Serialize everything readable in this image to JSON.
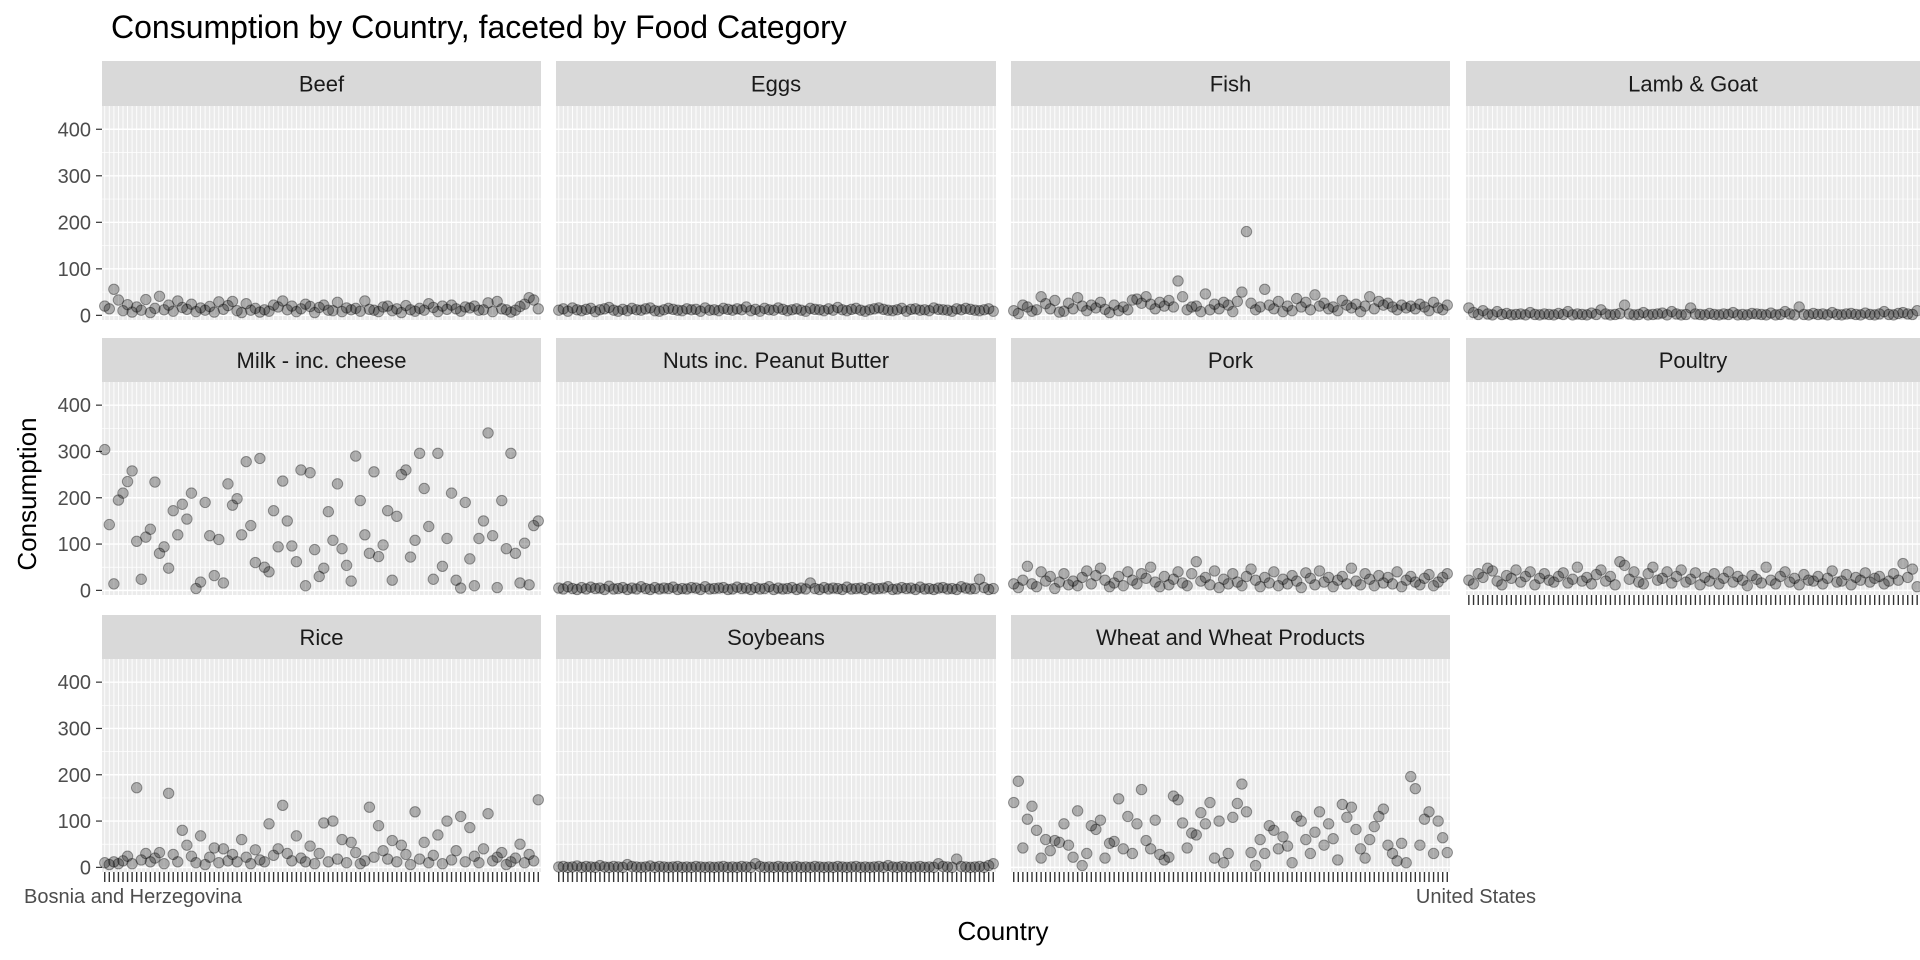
{
  "chart_data": {
    "type": "scatter",
    "title": "Consumption by Country, faceted by Food Category",
    "xlabel": "Country",
    "ylabel": "Consumption",
    "ylim": [
      -10,
      450
    ],
    "y_ticks": [
      0,
      100,
      200,
      300,
      400
    ],
    "grid": true,
    "legend": "none",
    "country_count": 96,
    "edge_labels": {
      "first": "Bosnia and Herzegovina",
      "last": "United States"
    },
    "point_color": "#000000",
    "point_alpha": 0.28,
    "panel_background": "#ebebeb",
    "strip_background": "#d9d9d9",
    "facets": [
      {
        "name": "Beef",
        "values": [
          20,
          14,
          56,
          33,
          10,
          23,
          7,
          18,
          11,
          34,
          6,
          15,
          41,
          12,
          22,
          9,
          31,
          17,
          13,
          24,
          8,
          16,
          11,
          19,
          7,
          29,
          13,
          21,
          30,
          10,
          6,
          25,
          11,
          15,
          7,
          12,
          9,
          22,
          18,
          31,
          12,
          20,
          8,
          14,
          24,
          19,
          6,
          17,
          22,
          11,
          10,
          28,
          8,
          16,
          12,
          15,
          9,
          31,
          13,
          11,
          8,
          18,
          20,
          10,
          14,
          6,
          21,
          12,
          9,
          15,
          11,
          25,
          17,
          8,
          20,
          13,
          22,
          14,
          9,
          18,
          16,
          20,
          11,
          12,
          27,
          8,
          30,
          14,
          12,
          7,
          11,
          19,
          24,
          38,
          33,
          14
        ]
      },
      {
        "name": "Eggs",
        "values": [
          11,
          14,
          9,
          16,
          12,
          10,
          13,
          15,
          8,
          12,
          14,
          17,
          11,
          9,
          13,
          10,
          15,
          12,
          11,
          14,
          16,
          10,
          9,
          12,
          15,
          13,
          11,
          10,
          14,
          12,
          13,
          9,
          16,
          11,
          12,
          10,
          15,
          13,
          11,
          14,
          12,
          18,
          10,
          13,
          9,
          15,
          12,
          11,
          16,
          13,
          10,
          12,
          14,
          11,
          9,
          15,
          13,
          12,
          10,
          14,
          11,
          17,
          12,
          10,
          13,
          15,
          11,
          9,
          12,
          14,
          16,
          13,
          11,
          10,
          12,
          15,
          9,
          13,
          14,
          11,
          12,
          10,
          16,
          13,
          12,
          11,
          9,
          14,
          12,
          15,
          13,
          11,
          10,
          12,
          14,
          9
        ]
      },
      {
        "name": "Fish",
        "values": [
          10,
          4,
          22,
          18,
          9,
          12,
          40,
          25,
          14,
          32,
          7,
          9,
          26,
          14,
          38,
          20,
          10,
          22,
          16,
          28,
          13,
          6,
          22,
          10,
          18,
          12,
          33,
          35,
          26,
          40,
          24,
          14,
          28,
          20,
          32,
          18,
          74,
          40,
          12,
          18,
          20,
          8,
          46,
          12,
          24,
          14,
          28,
          22,
          8,
          30,
          50,
          180,
          26,
          12,
          18,
          56,
          22,
          14,
          30,
          8,
          20,
          10,
          36,
          18,
          28,
          12,
          44,
          20,
          26,
          14,
          18,
          10,
          32,
          22,
          16,
          24,
          8,
          20,
          40,
          14,
          30,
          22,
          26,
          18,
          12,
          22,
          16,
          20,
          14,
          24,
          18,
          10,
          28,
          16,
          12,
          22
        ]
      },
      {
        "name": "Lamb & Goat",
        "values": [
          16,
          6,
          2,
          10,
          3,
          1,
          8,
          2,
          4,
          1,
          2,
          3,
          1,
          6,
          2,
          1,
          3,
          2,
          1,
          4,
          2,
          8,
          1,
          3,
          2,
          1,
          5,
          2,
          12,
          3,
          1,
          2,
          4,
          22,
          3,
          1,
          2,
          6,
          1,
          2,
          3,
          5,
          1,
          8,
          3,
          1,
          2,
          16,
          3,
          2,
          1,
          4,
          2,
          1,
          3,
          2,
          6,
          1,
          2,
          1,
          4,
          3,
          2,
          1,
          5,
          1,
          2,
          8,
          3,
          1,
          18,
          2,
          1,
          4,
          2,
          3,
          1,
          6,
          2,
          1,
          3,
          4,
          2,
          1,
          5,
          2,
          1,
          3,
          8,
          2,
          1,
          4,
          6,
          3,
          2,
          10
        ]
      },
      {
        "name": "Milk - inc. cheese",
        "values": [
          304,
          142,
          14,
          195,
          210,
          235,
          258,
          106,
          24,
          115,
          132,
          234,
          80,
          94,
          48,
          172,
          120,
          186,
          154,
          210,
          4,
          18,
          190,
          118,
          32,
          110,
          16,
          230,
          184,
          198,
          120,
          278,
          140,
          60,
          285,
          50,
          40,
          172,
          94,
          236,
          150,
          96,
          62,
          260,
          10,
          254,
          88,
          30,
          48,
          170,
          108,
          230,
          90,
          54,
          20,
          290,
          194,
          120,
          80,
          256,
          73,
          98,
          172,
          22,
          160,
          250,
          260,
          72,
          108,
          296,
          220,
          138,
          24,
          296,
          52,
          112,
          210,
          22,
          5,
          190,
          68,
          10,
          112,
          150,
          340,
          118,
          6,
          194,
          90,
          296,
          80,
          16,
          102,
          12,
          140,
          150
        ]
      },
      {
        "name": "Nuts inc. Peanut Butter",
        "values": [
          5,
          3,
          8,
          4,
          2,
          6,
          3,
          7,
          4,
          5,
          2,
          9,
          3,
          4,
          6,
          2,
          5,
          3,
          8,
          4,
          2,
          6,
          3,
          5,
          4,
          7,
          2,
          4,
          3,
          6,
          5,
          2,
          8,
          3,
          4,
          5,
          6,
          2,
          3,
          7,
          4,
          5,
          2,
          6,
          3,
          4,
          8,
          2,
          5,
          3,
          4,
          6,
          2,
          5,
          3,
          16,
          4,
          2,
          6,
          3,
          5,
          4,
          2,
          7,
          3,
          4,
          5,
          2,
          6,
          3,
          4,
          5,
          8,
          2,
          3,
          6,
          4,
          5,
          2,
          7,
          3,
          4,
          2,
          5,
          6,
          3,
          4,
          2,
          8,
          5,
          3,
          4,
          24,
          6,
          2,
          4
        ]
      },
      {
        "name": "Pork",
        "values": [
          14,
          6,
          22,
          52,
          14,
          8,
          40,
          20,
          30,
          4,
          18,
          36,
          12,
          20,
          10,
          28,
          42,
          14,
          32,
          48,
          22,
          8,
          16,
          30,
          10,
          40,
          22,
          14,
          36,
          26,
          50,
          18,
          8,
          30,
          12,
          24,
          40,
          16,
          10,
          36,
          62,
          20,
          28,
          12,
          42,
          6,
          24,
          14,
          36,
          18,
          10,
          30,
          46,
          22,
          8,
          28,
          16,
          40,
          10,
          24,
          14,
          32,
          20,
          6,
          38,
          26,
          12,
          42,
          18,
          28,
          8,
          22,
          30,
          14,
          48,
          20,
          12,
          36,
          24,
          10,
          32,
          16,
          28,
          14,
          40,
          8,
          22,
          30,
          18,
          12,
          26,
          34,
          10,
          18,
          28,
          36
        ]
      },
      {
        "name": "Poultry",
        "values": [
          22,
          14,
          36,
          28,
          48,
          42,
          20,
          12,
          32,
          26,
          44,
          18,
          30,
          40,
          12,
          26,
          36,
          22,
          18,
          30,
          38,
          16,
          24,
          50,
          20,
          28,
          14,
          34,
          44,
          20,
          30,
          12,
          62,
          54,
          24,
          40,
          18,
          14,
          36,
          50,
          22,
          26,
          40,
          16,
          30,
          44,
          18,
          24,
          38,
          12,
          28,
          20,
          36,
          14,
          26,
          40,
          18,
          30,
          22,
          10,
          32,
          24,
          16,
          50,
          22,
          14,
          30,
          40,
          18,
          26,
          12,
          34,
          22,
          20,
          30,
          14,
          26,
          42,
          18,
          20,
          34,
          12,
          28,
          22,
          38,
          18,
          26,
          30,
          14,
          20,
          36,
          22,
          58,
          28,
          46,
          8
        ]
      },
      {
        "name": "Rice",
        "values": [
          10,
          6,
          12,
          8,
          14,
          24,
          8,
          172,
          16,
          30,
          12,
          20,
          32,
          8,
          160,
          28,
          12,
          80,
          48,
          24,
          10,
          68,
          6,
          22,
          42,
          10,
          40,
          14,
          28,
          12,
          60,
          22,
          8,
          38,
          16,
          12,
          94,
          26,
          40,
          134,
          30,
          14,
          68,
          20,
          12,
          46,
          8,
          30,
          96,
          12,
          100,
          18,
          60,
          10,
          54,
          32,
          8,
          14,
          130,
          22,
          90,
          36,
          18,
          58,
          12,
          48,
          28,
          6,
          120,
          18,
          54,
          10,
          26,
          70,
          8,
          100,
          16,
          36,
          110,
          12,
          86,
          24,
          10,
          40,
          116,
          14,
          22,
          32,
          6,
          12,
          20,
          50,
          10,
          28,
          14,
          146
        ]
      },
      {
        "name": "Soybeans",
        "values": [
          1,
          2,
          0,
          1,
          3,
          0,
          2,
          1,
          0,
          4,
          1,
          0,
          2,
          1,
          0,
          6,
          2,
          1,
          0,
          1,
          3,
          0,
          2,
          1,
          0,
          1,
          2,
          0,
          1,
          0,
          2,
          1,
          0,
          1,
          0,
          1,
          2,
          0,
          1,
          0,
          2,
          1,
          0,
          8,
          2,
          0,
          1,
          0,
          2,
          1,
          0,
          1,
          2,
          0,
          1,
          0,
          2,
          1,
          0,
          1,
          0,
          2,
          1,
          0,
          1,
          2,
          0,
          1,
          0,
          1,
          2,
          0,
          4,
          1,
          0,
          2,
          1,
          0,
          1,
          2,
          0,
          1,
          0,
          8,
          2,
          1,
          0,
          18,
          2,
          1,
          0,
          1,
          2,
          0,
          4,
          8
        ]
      },
      {
        "name": "Wheat and Wheat Products",
        "values": [
          140,
          186,
          42,
          104,
          132,
          80,
          20,
          60,
          36,
          58,
          54,
          94,
          48,
          22,
          122,
          4,
          30,
          90,
          82,
          102,
          20,
          52,
          56,
          148,
          40,
          110,
          30,
          94,
          168,
          58,
          40,
          102,
          28,
          16,
          22,
          154,
          146,
          96,
          42,
          74,
          70,
          118,
          94,
          140,
          20,
          100,
          10,
          30,
          108,
          138,
          180,
          120,
          32,
          4,
          60,
          30,
          90,
          80,
          40,
          66,
          46,
          10,
          110,
          100,
          60,
          30,
          76,
          120,
          48,
          94,
          62,
          16,
          136,
          108,
          130,
          82,
          40,
          20,
          60,
          88,
          110,
          126,
          48,
          30,
          14,
          52,
          10,
          196,
          170,
          48,
          104,
          120,
          30,
          100,
          64,
          32
        ]
      }
    ]
  }
}
